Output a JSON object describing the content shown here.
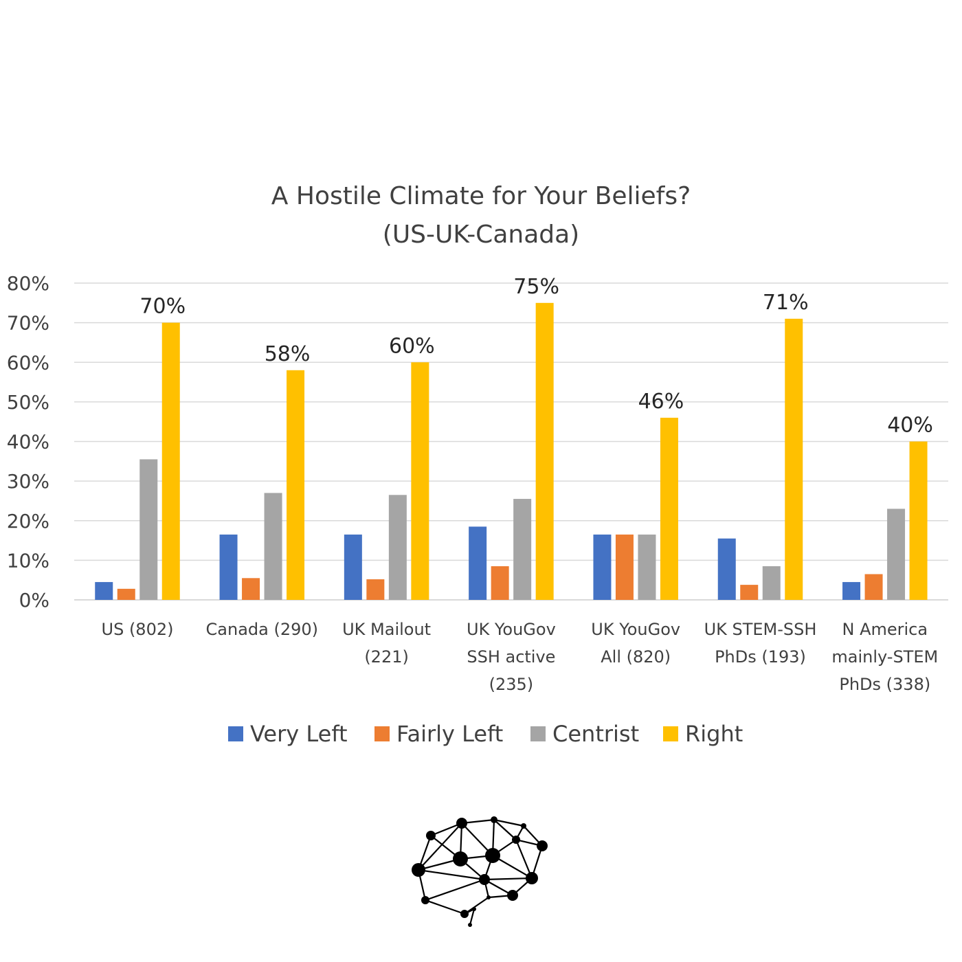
{
  "chart_data": {
    "type": "bar",
    "title": "A Hostile Climate for Your Beliefs?",
    "subtitle": "(US-UK-Canada)",
    "categories": [
      [
        "US (802)"
      ],
      [
        "Canada (290)"
      ],
      [
        "UK Mailout",
        "(221)"
      ],
      [
        "UK YouGov",
        "SSH active",
        "(235)"
      ],
      [
        "UK YouGov",
        "All (820)"
      ],
      [
        "UK STEM-SSH",
        "PhDs (193)"
      ],
      [
        "N America",
        "mainly-STEM",
        "PhDs (338)"
      ]
    ],
    "series": [
      {
        "name": "Very Left",
        "color": "#4472c4",
        "values": [
          4.5,
          16.5,
          16.5,
          18.5,
          16.5,
          15.5,
          4.5
        ]
      },
      {
        "name": "Fairly Left",
        "color": "#ed7d31",
        "values": [
          2.8,
          5.5,
          5.2,
          8.5,
          16.5,
          3.8,
          6.5
        ]
      },
      {
        "name": "Centrist",
        "color": "#a5a5a5",
        "values": [
          35.5,
          27,
          26.5,
          25.5,
          16.5,
          8.5,
          23
        ]
      },
      {
        "name": "Right",
        "color": "#ffc000",
        "values": [
          70,
          58,
          60,
          75,
          46,
          71,
          40
        ]
      }
    ],
    "data_labels": [
      {
        "series": "Right",
        "labels": [
          "70%",
          "58%",
          "60%",
          "75%",
          "46%",
          "71%",
          "40%"
        ]
      }
    ],
    "yticks": [
      "0%",
      "10%",
      "20%",
      "30%",
      "40%",
      "50%",
      "60%",
      "70%",
      "80%"
    ],
    "ylim": [
      0,
      80
    ],
    "xlabel": "",
    "ylabel": "",
    "grid": true,
    "legend": "bottom"
  },
  "logo": {
    "name": "brain-network-logo"
  }
}
